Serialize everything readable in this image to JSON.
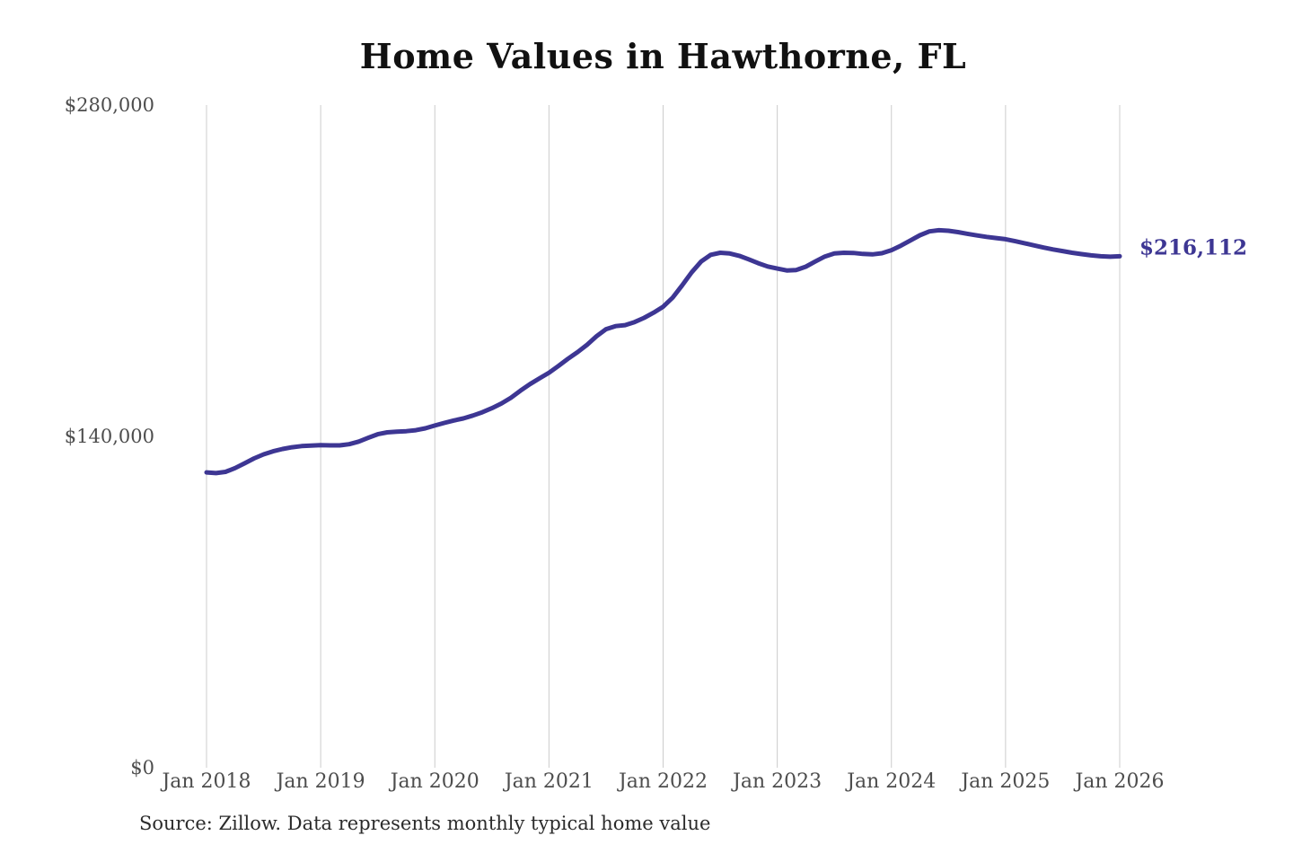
{
  "page": {
    "background": "#ffffff"
  },
  "chart": {
    "title": "Home Values in Hawthorne, FL",
    "end_label": "$216,112",
    "source_note": "Source: Zillow. Data represents monthly typical home value",
    "line_color": "#3d3693",
    "grid_color": "#cccccc",
    "axis_label_color": "#4d4d4d"
  },
  "chart_data": {
    "type": "line",
    "title": "Home Values in Hawthorne, FL",
    "xlabel": "",
    "ylabel": "",
    "x_start": "2018-01",
    "x_interval": "monthly",
    "x_tick_labels": [
      "Jan 2018",
      "Jan 2019",
      "Jan 2020",
      "Jan 2021",
      "Jan 2022",
      "Jan 2023",
      "Jan 2024",
      "Jan 2025",
      "Jan 2026"
    ],
    "y_ticks": [
      {
        "label": "$0",
        "value": 0
      },
      {
        "label": "$140,000",
        "value": 140000
      },
      {
        "label": "$280,000",
        "value": 280000
      }
    ],
    "ylim": [
      0,
      280000
    ],
    "grid": "vertical-only",
    "legend": "none",
    "end_annotation": {
      "label": "$216,112",
      "value": 216112
    },
    "series": [
      {
        "name": "Monthly typical home value",
        "values": [
          124800,
          124500,
          125000,
          126600,
          128600,
          130700,
          132400,
          133700,
          134700,
          135400,
          135900,
          136100,
          136300,
          136200,
          136200,
          136700,
          137800,
          139400,
          140900,
          141700,
          142000,
          142200,
          142600,
          143400,
          144600,
          145700,
          146700,
          147600,
          148800,
          150200,
          151900,
          153900,
          156300,
          159300,
          162100,
          164500,
          166900,
          169800,
          172800,
          175600,
          178700,
          182300,
          185300,
          186600,
          187000,
          188300,
          190100,
          192300,
          194800,
          198600,
          203800,
          209300,
          213900,
          216700,
          217600,
          217300,
          216300,
          214800,
          213200,
          211800,
          210900,
          210100,
          210300,
          211700,
          213900,
          216000,
          217300,
          217600,
          217500,
          217100,
          216900,
          217400,
          218700,
          220600,
          222800,
          225000,
          226600,
          227100,
          226900,
          226300,
          225600,
          224900,
          224300,
          223800,
          223300,
          222500,
          221600,
          220700,
          219800,
          219000,
          218300,
          217600,
          217000,
          216500,
          216100,
          215900,
          216112
        ]
      }
    ]
  }
}
